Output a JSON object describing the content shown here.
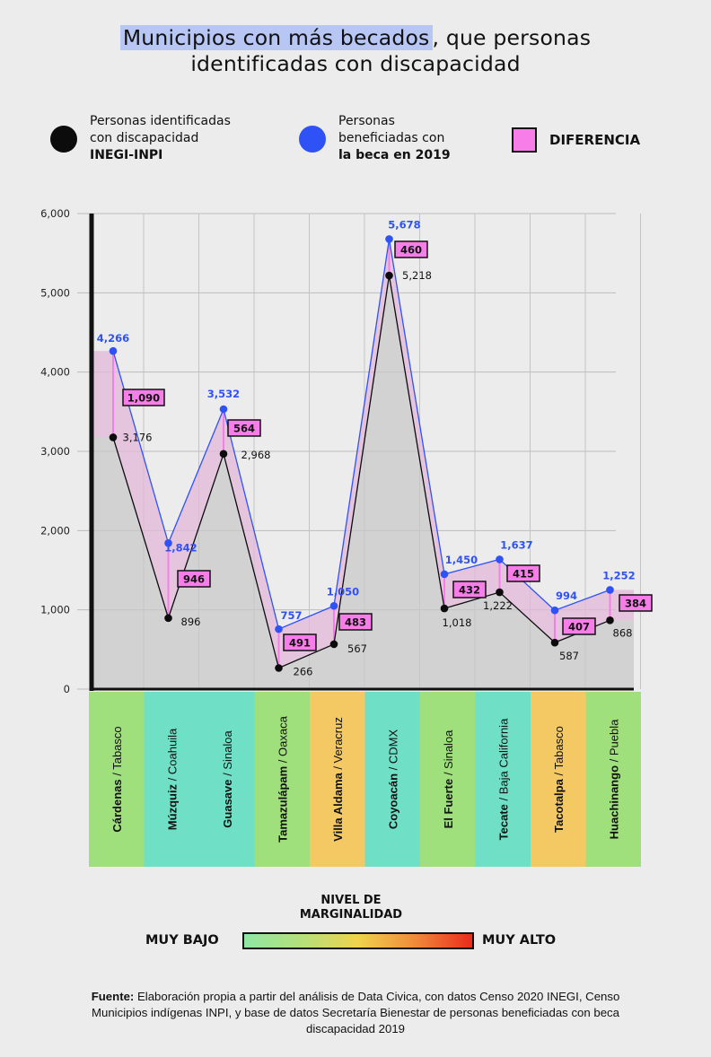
{
  "title": {
    "highlight": "Municipios con más becados",
    "rest": ", que personas",
    "line2": "identificadas con discapacidad"
  },
  "legend": {
    "inegi": {
      "line1": "Personas identificadas",
      "line2": "con discapacidad",
      "line3": "INEGI-INPI",
      "color": "#0c0c0c"
    },
    "beca": {
      "line1": "Personas",
      "line2": "beneficiadas con",
      "line3": "la beca en 2019",
      "color": "#2f52f7"
    },
    "diff": {
      "label": "DIFERENCIA",
      "color": "#f77ee8"
    }
  },
  "chart_data": {
    "type": "line",
    "ylim": [
      0,
      6000
    ],
    "y_ticks": [
      "0",
      "1,000",
      "2,000",
      "3,000",
      "4,000",
      "5,000",
      "6,000"
    ],
    "y_tick_values": [
      0,
      1000,
      2000,
      3000,
      4000,
      5000,
      6000
    ],
    "categories": [
      {
        "name": "Cárdenas",
        "state": "Tabasco",
        "marginalidad": "muy bajo",
        "color": "#9fdf7c"
      },
      {
        "name": "Múzquiz",
        "state": "Coahuila",
        "marginalidad": "bajo",
        "color": "#6fe0c6"
      },
      {
        "name": "Guasave",
        "state": "Sinaloa",
        "marginalidad": "bajo",
        "color": "#6fe0c6"
      },
      {
        "name": "Tamazulápam",
        "state": "Oaxaca",
        "marginalidad": "muy bajo",
        "color": "#9fdf7c"
      },
      {
        "name": "Villa Aldama",
        "state": "Veracruz",
        "marginalidad": "medio",
        "color": "#f4c964"
      },
      {
        "name": "Coyoacán",
        "state": "CDMX",
        "marginalidad": "bajo",
        "color": "#6fe0c6"
      },
      {
        "name": "El Fuerte",
        "state": "Sinaloa",
        "marginalidad": "muy bajo",
        "color": "#9fdf7c"
      },
      {
        "name": "Tecate",
        "state": "Baja California",
        "marginalidad": "bajo",
        "color": "#6fe0c6"
      },
      {
        "name": "Tacotalpa",
        "state": "Tabasco",
        "marginalidad": "medio",
        "color": "#f4c964"
      },
      {
        "name": "Huachinango",
        "state": "Puebla",
        "marginalidad": "muy bajo",
        "color": "#9fdf7c"
      }
    ],
    "series": [
      {
        "key": "beca",
        "values": [
          4266,
          1842,
          3532,
          757,
          1050,
          5678,
          1450,
          1637,
          994,
          1252
        ],
        "labels": [
          "4,266",
          "1,842",
          "3,532",
          "757",
          "1,050",
          "5,678",
          "1,450",
          "1,637",
          "994",
          "1,252"
        ]
      },
      {
        "key": "inegi",
        "values": [
          3176,
          896,
          2968,
          266,
          567,
          5218,
          1018,
          1222,
          587,
          868
        ],
        "labels": [
          "3,176",
          "896",
          "2,968",
          "266",
          "567",
          "5,218",
          "1,018",
          "1,222",
          "587",
          "868"
        ]
      }
    ],
    "differences": [
      1090,
      946,
      564,
      491,
      483,
      460,
      432,
      415,
      407,
      384
    ],
    "difference_labels": [
      "1,090",
      "946",
      "564",
      "491",
      "483",
      "460",
      "432",
      "415",
      "407",
      "384"
    ]
  },
  "scale": {
    "title_line1": "NIVEL DE",
    "title_line2": "MARGINALIDAD",
    "low": "MUY BAJO",
    "high": "MUY ALTO"
  },
  "source": {
    "label": "Fuente:",
    "text": " Elaboración propia a partir del análisis de Data Civica, con datos Censo 2020 INEGI, Censo Municipios indígenas INPI, y base de datos Secretaría Bienestar de personas beneficiadas con beca discapacidad 2019"
  }
}
